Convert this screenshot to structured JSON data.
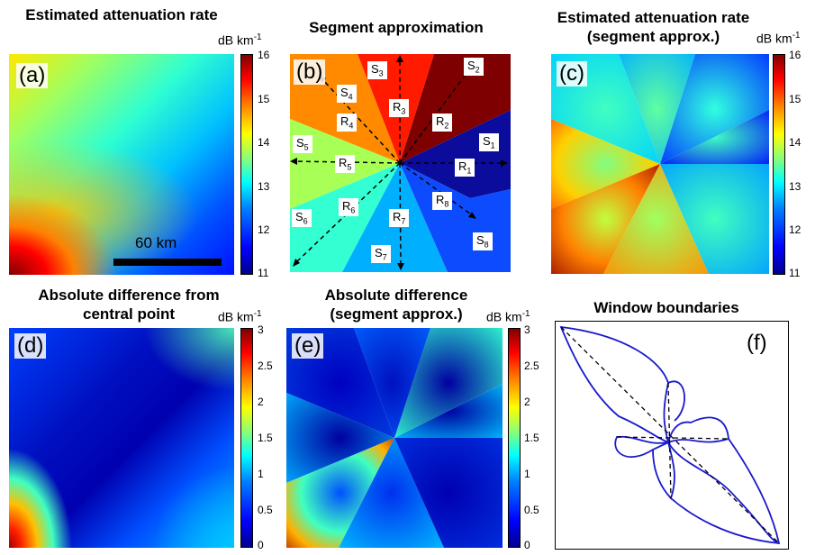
{
  "titles": {
    "a": "Estimated attenuation rate",
    "b": "Segment approximation",
    "c": "Estimated attenuation rate (segment approx.)",
    "d": "Absolute difference from central point",
    "e": "Absolute difference (segment approx.)",
    "f": "Window boundaries"
  },
  "panel_labels": {
    "a": "(a)",
    "b": "(b)",
    "c": "(c)",
    "d": "(d)",
    "e": "(e)",
    "f": "(f)"
  },
  "unit": "dB km",
  "unit_exp": "-1",
  "scale_bar": "60 km",
  "colorbar_top": {
    "ticks": [
      "16",
      "15",
      "14",
      "13",
      "12",
      "11"
    ]
  },
  "colorbar_bottom": {
    "ticks": [
      "3",
      "2.5",
      "2",
      "1.5",
      "1",
      "0.5",
      "0"
    ]
  },
  "segments": {
    "S1": {
      "l": "S",
      "s": "1"
    },
    "S2": {
      "l": "S",
      "s": "2"
    },
    "S3": {
      "l": "S",
      "s": "3"
    },
    "S4": {
      "l": "S",
      "s": "4"
    },
    "S5": {
      "l": "S",
      "s": "5"
    },
    "S6": {
      "l": "S",
      "s": "6"
    },
    "S7": {
      "l": "S",
      "s": "7"
    },
    "S8": {
      "l": "S",
      "s": "8"
    },
    "R1": {
      "l": "R",
      "s": "1"
    },
    "R2": {
      "l": "R",
      "s": "2"
    },
    "R3": {
      "l": "R",
      "s": "3"
    },
    "R4": {
      "l": "R",
      "s": "4"
    },
    "R5": {
      "l": "R",
      "s": "5"
    },
    "R6": {
      "l": "R",
      "s": "6"
    },
    "R7": {
      "l": "R",
      "s": "7"
    },
    "R8": {
      "l": "R",
      "s": "8"
    }
  },
  "colors": {
    "seg1": "#0c0c9c",
    "seg2": "#7e0000",
    "seg3": "#ff1a00",
    "seg4": "#ff8a00",
    "seg5": "#a8ff55",
    "seg6": "#33ffd2",
    "seg7": "#00b0ff",
    "seg8": "#0d4bff",
    "window": "#1a1acc"
  }
}
